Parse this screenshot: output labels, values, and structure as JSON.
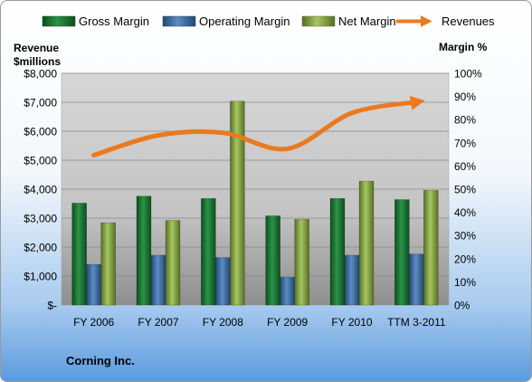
{
  "chart_data": {
    "type": "bar",
    "subtitle": "Corning Inc.",
    "categories": [
      "FY 2006",
      "FY 2007",
      "FY 2008",
      "FY 2009",
      "FY 2010",
      "TTM 3-2011"
    ],
    "y_left_label_line1": "Revenue",
    "y_left_label_line2": "$millions",
    "y_right_label": "Margin %",
    "y_left_range": [
      0,
      8000
    ],
    "y_right_range": [
      0,
      100
    ],
    "y_left_ticks": [
      "$-",
      "$1,000",
      "$2,000",
      "$3,000",
      "$4,000",
      "$5,000",
      "$6,000",
      "$7,000",
      "$8,000"
    ],
    "y_right_ticks": [
      "0%",
      "10%",
      "20%",
      "30%",
      "40%",
      "50%",
      "60%",
      "70%",
      "80%",
      "90%",
      "100%"
    ],
    "grid": true,
    "legend_position": "top",
    "series": [
      {
        "name": "Gross Margin",
        "kind": "bar",
        "axis": "right",
        "color": "#1f7a35",
        "values": [
          44,
          47,
          46,
          38.5,
          46,
          45.5
        ]
      },
      {
        "name": "Operating Margin",
        "kind": "bar",
        "axis": "right",
        "color": "#3a6ea8",
        "values": [
          17.5,
          21.5,
          20.5,
          12,
          21.5,
          22
        ]
      },
      {
        "name": "Net Margin",
        "kind": "bar",
        "axis": "right",
        "color": "#86a948",
        "values": [
          35.5,
          36.5,
          88,
          37,
          53.5,
          49.5
        ]
      },
      {
        "name": "Revenues",
        "kind": "line",
        "axis": "left",
        "color": "#ea7a1f",
        "values": [
          5174,
          5860,
          5948,
          5395,
          6632,
          7010
        ]
      }
    ]
  }
}
